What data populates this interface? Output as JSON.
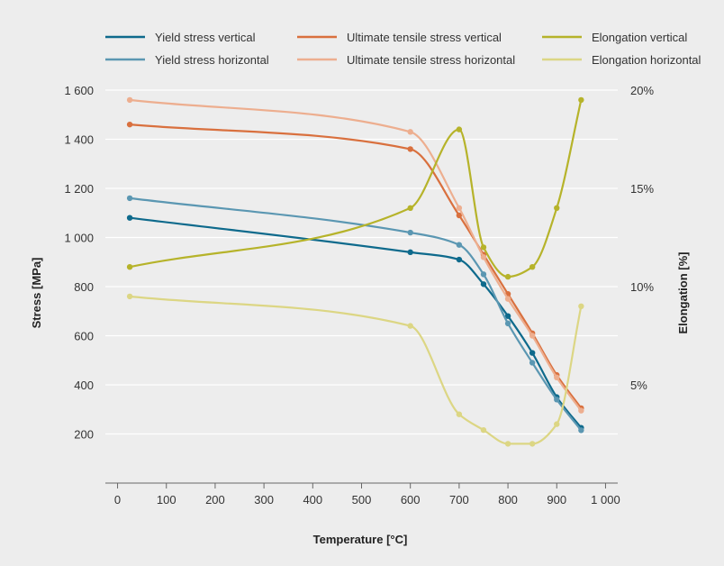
{
  "chart_data": {
    "type": "line",
    "xlabel": "Temperature [°C]",
    "ylabel": "Stress [MPa]",
    "y2label": "Elongation [%]",
    "xlim": [
      -25,
      1025
    ],
    "ylim": [
      0,
      1600
    ],
    "y2lim": [
      0,
      20
    ],
    "x_ticks": [
      0,
      100,
      200,
      300,
      400,
      500,
      600,
      700,
      800,
      900,
      1000
    ],
    "x_tick_labels": [
      "0",
      "100",
      "200",
      "300",
      "400",
      "500",
      "600",
      "700",
      "800",
      "900",
      "1 000"
    ],
    "y_ticks": [
      200,
      400,
      600,
      800,
      1000,
      1200,
      1400,
      1600
    ],
    "y_tick_labels": [
      "200",
      "400",
      "600",
      "800",
      "1 000",
      "1 200",
      "1 400",
      "1 600"
    ],
    "y2_ticks": [
      5,
      10,
      15,
      20
    ],
    "y2_tick_labels": [
      "5%",
      "10%",
      "15%",
      "20%"
    ],
    "grid": "horizontal",
    "legend_placement": "top",
    "series": [
      {
        "name": "Yield stress vertical",
        "axis": "left",
        "color": "#0e6a8c",
        "x": [
          25,
          600,
          700,
          750,
          800,
          850,
          900,
          950
        ],
        "y": [
          1080,
          940,
          910,
          810,
          680,
          530,
          350,
          225
        ]
      },
      {
        "name": "Yield stress horizontal",
        "axis": "left",
        "color": "#5b97b2",
        "x": [
          25,
          600,
          700,
          750,
          800,
          850,
          900,
          950
        ],
        "y": [
          1160,
          1020,
          970,
          850,
          650,
          490,
          340,
          215
        ]
      },
      {
        "name": "Ultimate tensile stress vertical",
        "axis": "left",
        "color": "#d9703e",
        "x": [
          25,
          600,
          700,
          750,
          800,
          850,
          900,
          950
        ],
        "y": [
          1460,
          1360,
          1090,
          930,
          770,
          610,
          440,
          305
        ]
      },
      {
        "name": "Ultimate tensile stress horizontal",
        "axis": "left",
        "color": "#edae8f",
        "x": [
          25,
          600,
          700,
          750,
          800,
          850,
          900,
          950
        ],
        "y": [
          1560,
          1430,
          1120,
          920,
          750,
          600,
          430,
          295
        ]
      },
      {
        "name": "Elongation vertical",
        "axis": "right",
        "color": "#b6b32a",
        "x": [
          25,
          600,
          700,
          750,
          800,
          850,
          900,
          950
        ],
        "y": [
          11.0,
          14.0,
          18.0,
          12.0,
          10.5,
          11.0,
          14.0,
          19.5
        ]
      },
      {
        "name": "Elongation horizontal",
        "axis": "right",
        "color": "#dcd684",
        "x": [
          25,
          600,
          700,
          750,
          800,
          850,
          900,
          950
        ],
        "y": [
          9.5,
          8.0,
          3.5,
          2.7,
          2.0,
          2.0,
          3.0,
          9.0
        ]
      }
    ]
  }
}
